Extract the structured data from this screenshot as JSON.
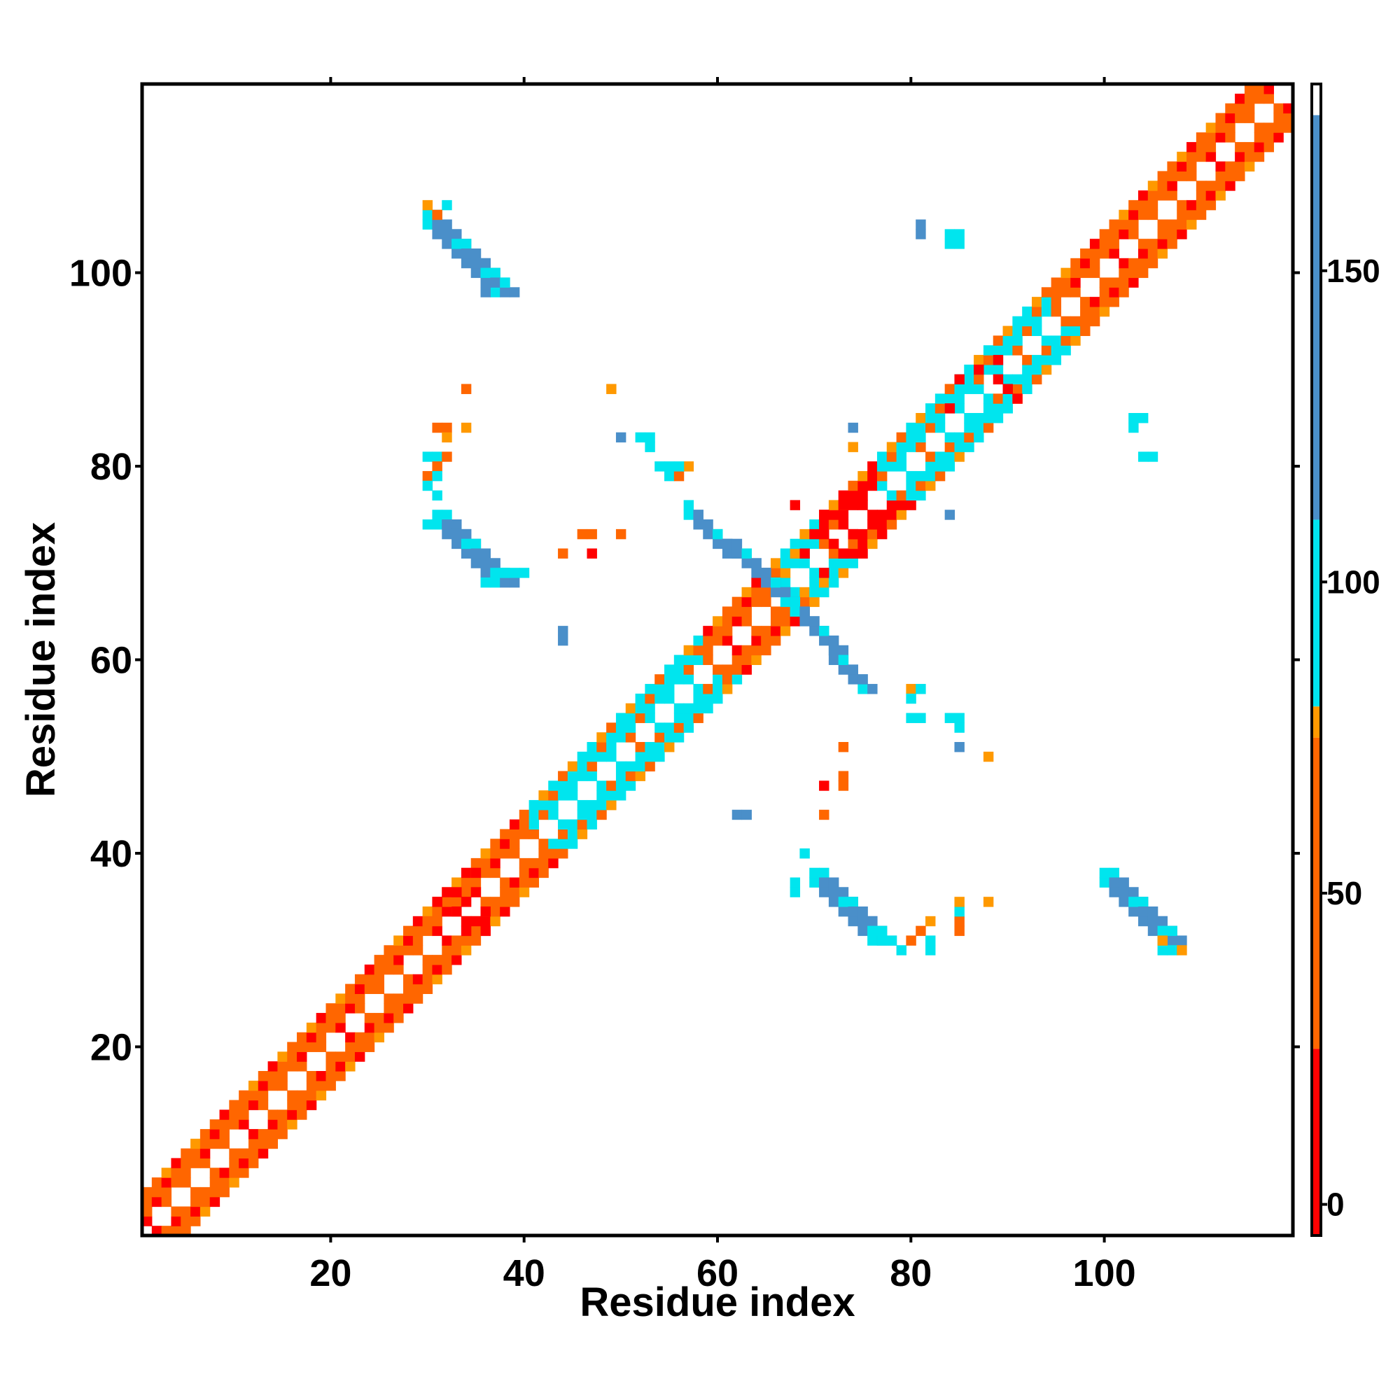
{
  "chart_data": {
    "type": "heatmap",
    "title": "",
    "xlabel": "Residue index",
    "ylabel": "Residue index",
    "xlim": [
      0.5,
      119.5
    ],
    "ylim": [
      0.5,
      119.5
    ],
    "x_ticks": [
      20,
      40,
      60,
      80,
      100
    ],
    "y_ticks": [
      20,
      40,
      60,
      80,
      100
    ],
    "grid": false,
    "colorbar": {
      "placement": "right",
      "range": [
        -5,
        180
      ],
      "ticks": [
        0,
        50,
        100,
        150
      ],
      "bands": [
        {
          "from": -5,
          "to": 25,
          "color": "#ff0000"
        },
        {
          "from": 25,
          "to": 75,
          "color": "#ff6600"
        },
        {
          "from": 75,
          "to": 80,
          "color": "#ff9900"
        },
        {
          "from": 80,
          "to": 110,
          "color": "#00e5ee"
        },
        {
          "from": 110,
          "to": 175,
          "color": "#4a8fc9"
        },
        {
          "from": 175,
          "to": 180,
          "color": "#ffffff"
        }
      ]
    },
    "colors": {
      "red": "#ff0000",
      "orange": "#ff6600",
      "amber": "#ff9900",
      "cyan": "#00e5ee",
      "blue": "#4a8fc9"
    },
    "regions": [
      {
        "x1": 30,
        "y1": 105,
        "x2": 37,
        "y2": 98,
        "width": 3,
        "color": "blue",
        "fringe": "cyan"
      },
      {
        "x1": 31,
        "y1": 74,
        "x2": 37,
        "y2": 68,
        "width": 3,
        "color": "blue",
        "fringe": "cyan"
      },
      {
        "x1": 70,
        "y1": 37,
        "x2": 76,
        "y2": 31,
        "width": 3,
        "color": "blue",
        "fringe": "cyan"
      },
      {
        "x1": 100,
        "y1": 37,
        "x2": 106,
        "y2": 31,
        "width": 3,
        "color": "blue",
        "fringe": "cyan"
      },
      {
        "x1": 57,
        "y1": 75,
        "x2": 67,
        "y2": 66,
        "width": 2,
        "color": "blue",
        "fringe": "cyan"
      },
      {
        "x1": 68,
        "y1": 65,
        "x2": 75,
        "y2": 57,
        "width": 2,
        "color": "blue",
        "fringe": "cyan"
      }
    ],
    "cells": [
      {
        "x": 30,
        "y": 107,
        "c": "amber"
      },
      {
        "x": 32,
        "y": 107,
        "c": "cyan"
      },
      {
        "x": 31,
        "y": 106,
        "c": "orange"
      },
      {
        "x": 38,
        "y": 99,
        "c": "cyan"
      },
      {
        "x": 36,
        "y": 98,
        "c": "blue"
      },
      {
        "x": 30,
        "y": 81,
        "c": "cyan"
      },
      {
        "x": 31,
        "y": 81,
        "c": "cyan"
      },
      {
        "x": 32,
        "y": 81,
        "c": "orange"
      },
      {
        "x": 30,
        "y": 79,
        "c": "orange"
      },
      {
        "x": 31,
        "y": 80,
        "c": "orange"
      },
      {
        "x": 31,
        "y": 79,
        "c": "cyan"
      },
      {
        "x": 30,
        "y": 78,
        "c": "cyan"
      },
      {
        "x": 31,
        "y": 77,
        "c": "cyan"
      },
      {
        "x": 30,
        "y": 74,
        "c": "cyan"
      },
      {
        "x": 31,
        "y": 84,
        "c": "orange"
      },
      {
        "x": 32,
        "y": 84,
        "c": "orange"
      },
      {
        "x": 34,
        "y": 84,
        "c": "amber"
      },
      {
        "x": 32,
        "y": 83,
        "c": "amber"
      },
      {
        "x": 34,
        "y": 88,
        "c": "orange"
      },
      {
        "x": 38,
        "y": 69,
        "c": "cyan"
      },
      {
        "x": 39,
        "y": 69,
        "c": "cyan"
      },
      {
        "x": 40,
        "y": 69,
        "c": "cyan"
      },
      {
        "x": 36,
        "y": 68,
        "c": "cyan"
      },
      {
        "x": 49,
        "y": 88,
        "c": "amber"
      },
      {
        "x": 50,
        "y": 83,
        "c": "blue"
      },
      {
        "x": 52,
        "y": 83,
        "c": "cyan"
      },
      {
        "x": 53,
        "y": 83,
        "c": "cyan"
      },
      {
        "x": 53,
        "y": 82,
        "c": "cyan"
      },
      {
        "x": 54,
        "y": 80,
        "c": "cyan"
      },
      {
        "x": 55,
        "y": 80,
        "c": "cyan"
      },
      {
        "x": 55,
        "y": 79,
        "c": "cyan"
      },
      {
        "x": 56,
        "y": 79,
        "c": "orange"
      },
      {
        "x": 57,
        "y": 80,
        "c": "amber"
      },
      {
        "x": 56,
        "y": 80,
        "c": "cyan"
      },
      {
        "x": 46,
        "y": 73,
        "c": "orange"
      },
      {
        "x": 47,
        "y": 73,
        "c": "orange"
      },
      {
        "x": 50,
        "y": 73,
        "c": "orange"
      },
      {
        "x": 44,
        "y": 71,
        "c": "orange"
      },
      {
        "x": 47,
        "y": 71,
        "c": "red"
      },
      {
        "x": 44,
        "y": 63,
        "c": "blue"
      },
      {
        "x": 44,
        "y": 62,
        "c": "blue"
      },
      {
        "x": 74,
        "y": 84,
        "c": "blue"
      },
      {
        "x": 74,
        "y": 82,
        "c": "amber"
      },
      {
        "x": 84,
        "y": 75,
        "c": "blue"
      },
      {
        "x": 81,
        "y": 105,
        "c": "blue"
      },
      {
        "x": 81,
        "y": 104,
        "c": "blue"
      },
      {
        "x": 84,
        "y": 104,
        "c": "cyan"
      },
      {
        "x": 85,
        "y": 104,
        "c": "cyan"
      },
      {
        "x": 84,
        "y": 103,
        "c": "cyan"
      },
      {
        "x": 85,
        "y": 103,
        "c": "cyan"
      },
      {
        "x": 103,
        "y": 85,
        "c": "cyan"
      },
      {
        "x": 104,
        "y": 85,
        "c": "cyan"
      },
      {
        "x": 103,
        "y": 84,
        "c": "cyan"
      },
      {
        "x": 104,
        "y": 81,
        "c": "cyan"
      },
      {
        "x": 105,
        "y": 81,
        "c": "cyan"
      },
      {
        "x": 80,
        "y": 57,
        "c": "amber"
      },
      {
        "x": 81,
        "y": 57,
        "c": "cyan"
      },
      {
        "x": 80,
        "y": 56,
        "c": "cyan"
      },
      {
        "x": 80,
        "y": 54,
        "c": "cyan"
      },
      {
        "x": 81,
        "y": 54,
        "c": "cyan"
      },
      {
        "x": 84,
        "y": 54,
        "c": "cyan"
      },
      {
        "x": 85,
        "y": 54,
        "c": "cyan"
      },
      {
        "x": 85,
        "y": 53,
        "c": "cyan"
      },
      {
        "x": 85,
        "y": 51,
        "c": "blue"
      },
      {
        "x": 88,
        "y": 50,
        "c": "amber"
      },
      {
        "x": 73,
        "y": 51,
        "c": "orange"
      },
      {
        "x": 73,
        "y": 48,
        "c": "orange"
      },
      {
        "x": 71,
        "y": 47,
        "c": "red"
      },
      {
        "x": 73,
        "y": 47,
        "c": "orange"
      },
      {
        "x": 71,
        "y": 44,
        "c": "orange"
      },
      {
        "x": 62,
        "y": 44,
        "c": "blue"
      },
      {
        "x": 63,
        "y": 44,
        "c": "blue"
      },
      {
        "x": 69,
        "y": 40,
        "c": "cyan"
      },
      {
        "x": 68,
        "y": 37,
        "c": "cyan"
      },
      {
        "x": 68,
        "y": 36,
        "c": "cyan"
      },
      {
        "x": 77,
        "y": 31,
        "c": "cyan"
      },
      {
        "x": 78,
        "y": 31,
        "c": "cyan"
      },
      {
        "x": 79,
        "y": 30,
        "c": "cyan"
      },
      {
        "x": 80,
        "y": 31,
        "c": "orange"
      },
      {
        "x": 81,
        "y": 32,
        "c": "orange"
      },
      {
        "x": 82,
        "y": 33,
        "c": "amber"
      },
      {
        "x": 82,
        "y": 31,
        "c": "cyan"
      },
      {
        "x": 82,
        "y": 30,
        "c": "cyan"
      },
      {
        "x": 85,
        "y": 33,
        "c": "orange"
      },
      {
        "x": 85,
        "y": 34,
        "c": "cyan"
      },
      {
        "x": 85,
        "y": 35,
        "c": "amber"
      },
      {
        "x": 85,
        "y": 32,
        "c": "orange"
      },
      {
        "x": 88,
        "y": 35,
        "c": "amber"
      },
      {
        "x": 106,
        "y": 30,
        "c": "cyan"
      },
      {
        "x": 107,
        "y": 30,
        "c": "cyan"
      },
      {
        "x": 108,
        "y": 30,
        "c": "amber"
      },
      {
        "x": 106,
        "y": 31,
        "c": "amber"
      },
      {
        "x": 68,
        "y": 76,
        "c": "red"
      },
      {
        "x": 70,
        "y": 73,
        "c": "red"
      },
      {
        "x": 71,
        "y": 75,
        "c": "red"
      },
      {
        "x": 72,
        "y": 72,
        "c": "red"
      },
      {
        "x": 73,
        "y": 76,
        "c": "red"
      },
      {
        "x": 73,
        "y": 71,
        "c": "red"
      },
      {
        "x": 74,
        "y": 73,
        "c": "red"
      },
      {
        "x": 69,
        "y": 71,
        "c": "red"
      },
      {
        "x": 71,
        "y": 69,
        "c": "red"
      },
      {
        "x": 85,
        "y": 89,
        "c": "red"
      },
      {
        "x": 87,
        "y": 90,
        "c": "red"
      },
      {
        "x": 89,
        "y": 89,
        "c": "red"
      },
      {
        "x": 90,
        "y": 88,
        "c": "red"
      },
      {
        "x": 89,
        "y": 91,
        "c": "red"
      },
      {
        "x": 91,
        "y": 87,
        "c": "red"
      },
      {
        "x": 84,
        "y": 86,
        "c": "red"
      },
      {
        "x": 32,
        "y": 36,
        "c": "red"
      },
      {
        "x": 33,
        "y": 36,
        "c": "red"
      },
      {
        "x": 34,
        "y": 35,
        "c": "red"
      },
      {
        "x": 33,
        "y": 34,
        "c": "red"
      },
      {
        "x": 34,
        "y": 33,
        "c": "red"
      },
      {
        "x": 35,
        "y": 33,
        "c": "red"
      },
      {
        "x": 36,
        "y": 34,
        "c": "red"
      },
      {
        "x": 35,
        "y": 36,
        "c": "red"
      },
      {
        "x": 36,
        "y": 32,
        "c": "red"
      },
      {
        "x": 34,
        "y": 32,
        "c": "red"
      },
      {
        "x": 31,
        "y": 35,
        "c": "red"
      },
      {
        "x": 35,
        "y": 38,
        "c": "red"
      },
      {
        "x": 30,
        "y": 33,
        "c": "orange"
      }
    ],
    "diagonal_bands": [
      {
        "from": 1,
        "to": 40,
        "color": "orange",
        "accent": "red"
      },
      {
        "from": 40,
        "to": 58,
        "color": "cyan",
        "accent": "orange"
      },
      {
        "from": 58,
        "to": 66,
        "color": "orange",
        "accent": "red"
      },
      {
        "from": 66,
        "to": 70,
        "color": "cyan",
        "accent": "amber"
      },
      {
        "from": 70,
        "to": 76,
        "color": "red",
        "accent": "orange"
      },
      {
        "from": 76,
        "to": 94,
        "color": "cyan",
        "accent": "orange"
      },
      {
        "from": 94,
        "to": 119,
        "color": "orange",
        "accent": "red"
      }
    ]
  }
}
